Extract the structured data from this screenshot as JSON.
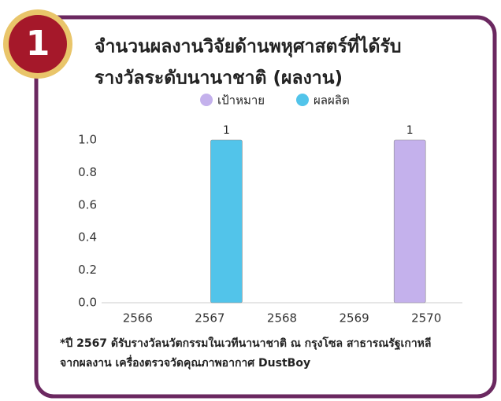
{
  "badge": "1",
  "chart_data": {
    "type": "bar",
    "title": [
      "จำนวนผลงานวิจัยด้านพหุศาสตร์ที่ได้รับ",
      "รางวัลระดับนานาชาติ (ผลงาน)"
    ],
    "categories": [
      "2566",
      "2567",
      "2568",
      "2569",
      "2570"
    ],
    "series": [
      {
        "name": "เป้าหมาย",
        "color": "#c4b1ec",
        "values": [
          null,
          null,
          null,
          null,
          1
        ]
      },
      {
        "name": "ผลผลิต",
        "color": "#52c4ea",
        "values": [
          null,
          1,
          null,
          null,
          null
        ]
      }
    ],
    "ylim": [
      0,
      1
    ],
    "yticks": [
      {
        "value": 0,
        "label": "0.0"
      },
      0.2,
      0.4,
      0.6,
      0.8,
      {
        "value": 1,
        "label": "1.0"
      }
    ],
    "legend": "top",
    "grid": false
  },
  "note": [
    "*ปี 2567 ด้รับรางวัลนวัตกรรมในเวทีนานาชาติ ณ กรุงโซล สาธารณรัฐเกาหลี",
    "จากผลงาน เครื่องตรวจวัดคุณภาพอากาศ DustBoy"
  ]
}
